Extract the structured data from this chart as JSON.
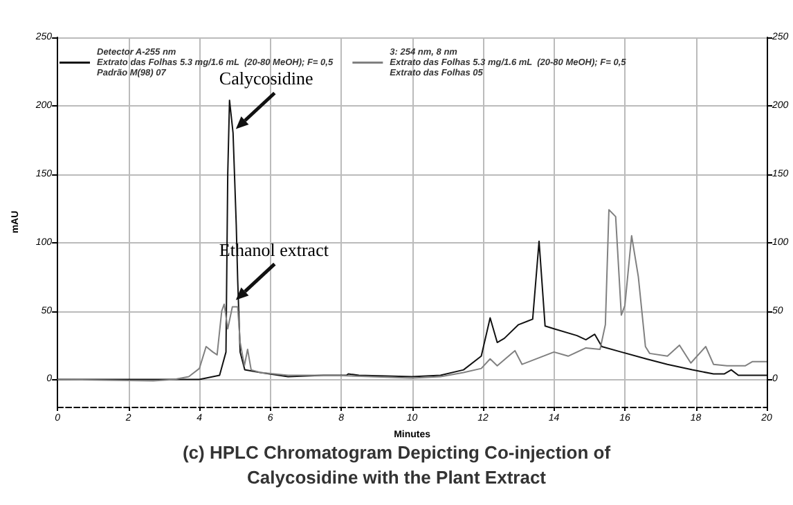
{
  "chart_data": {
    "type": "line",
    "title": "(c) HPLC Chromatogram Depicting Co-injection of\nCalycosidine with the Plant Extract",
    "xlabel": "Minutes",
    "ylabel": "mAU",
    "xlim": [
      0,
      20
    ],
    "xticks": [
      0,
      2,
      4,
      6,
      8,
      10,
      12,
      14,
      16,
      18,
      20
    ],
    "ylim": [
      -20,
      250
    ],
    "yticks": [
      0,
      50,
      100,
      150,
      200,
      250
    ],
    "y2lim": [
      -20,
      250
    ],
    "y2ticks": [
      0,
      50,
      100,
      150,
      200,
      250
    ],
    "grid": true,
    "legend": "top left",
    "marker": "none",
    "line_style": "solid",
    "annotations": [
      {
        "text": "Calycosidine",
        "x": 4.95,
        "y": 181
      },
      {
        "text": "Ethanol extract",
        "x": 4.95,
        "y": 56
      }
    ],
    "series": [
      {
        "name": "Detector A-255 nm\nExtrato das Folhas 5.3 mg/1.6 mL  (20-80 MeOH); F= 0,5\nPadrão M(98) 07",
        "color": "#111111",
        "x": [
          0,
          4.0,
          4.57,
          4.75,
          4.8,
          4.85,
          4.95,
          5.04,
          5.08,
          5.15,
          5.28,
          5.72,
          6.5,
          7.5,
          8.15,
          8.2,
          8.5,
          10,
          10.8,
          11.45,
          11.95,
          12.2,
          12.4,
          12.6,
          13.0,
          13.4,
          13.58,
          13.75,
          14.0,
          14.65,
          14.9,
          15.15,
          15.35,
          15.9,
          16.6,
          17.2,
          17.9,
          18.5,
          18.8,
          19.0,
          19.2,
          20
        ],
        "values": [
          0,
          0,
          3,
          20,
          150,
          204,
          180,
          113,
          73,
          20,
          7,
          5,
          2,
          3,
          3,
          4,
          3,
          2,
          3,
          7,
          17,
          45,
          27,
          30,
          40,
          44,
          101,
          39,
          37,
          32,
          29,
          33,
          24,
          20,
          15,
          11,
          7,
          4,
          4,
          7,
          3,
          3
        ]
      },
      {
        "name": "3: 254 nm, 8 nm\nExtrato das Folhas 5.3 mg/1.6 mL  (20-80 MeOH); F= 0,5\nExtrato das Folhas 05",
        "color": "#808080",
        "x": [
          0,
          2.7,
          3.3,
          3.7,
          4.0,
          4.19,
          4.38,
          4.5,
          4.63,
          4.7,
          4.8,
          4.93,
          5.08,
          5.15,
          5.27,
          5.36,
          5.46,
          5.72,
          6.5,
          7.8,
          10,
          10.8,
          11.45,
          11.95,
          12.2,
          12.4,
          12.9,
          13.1,
          14.0,
          14.4,
          14.9,
          15.3,
          15.45,
          15.55,
          15.74,
          15.9,
          16.0,
          16.19,
          16.38,
          16.58,
          16.7,
          17.2,
          17.54,
          17.86,
          18.28,
          18.5,
          18.88,
          19.4,
          19.6,
          20
        ],
        "values": [
          0,
          -1,
          0,
          2,
          8,
          24,
          20,
          18,
          50,
          55,
          37,
          53,
          53,
          27,
          10,
          22,
          7,
          5,
          3,
          3,
          1,
          2,
          5,
          8,
          15,
          10,
          21,
          11,
          20,
          17,
          23,
          22,
          40,
          124,
          119,
          47,
          54,
          105,
          75,
          24,
          19,
          17,
          25,
          12,
          24,
          11,
          10,
          10,
          13,
          13
        ]
      }
    ]
  }
}
